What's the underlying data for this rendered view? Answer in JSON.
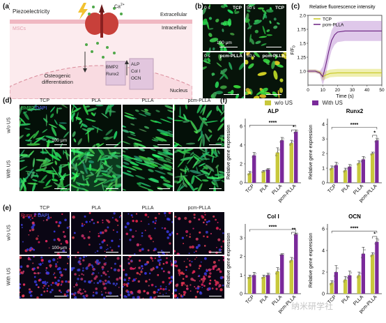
{
  "panel_labels": {
    "a": "(a)",
    "b": "(b)",
    "c": "(c)",
    "d": "(d)",
    "e": "(e)",
    "f": "(f)"
  },
  "panel_a": {
    "piezo": "Piezoelectricity",
    "ca": "Ca",
    "ca_sup": "2+",
    "extracellular": "Extracellular",
    "intracellular": "Intracellular",
    "mscs": "MSCs",
    "osteogenic": "Osteogenic",
    "differentiation": "differentiation",
    "bmp2": "BMP2",
    "runx2": "Runx2",
    "alp": "ALP",
    "col1": "Col I",
    "ocn": "OCN",
    "nucleus": "Nucleus"
  },
  "panel_b": {
    "tl_time": "0 s",
    "tl_label": "TCP",
    "tr_time": "50 s",
    "tr_label": "TCP",
    "bl_time": "0 s",
    "bl_label": "pcm-PLLA",
    "br_time": "50 s",
    "br_label": "pcm-PLLA",
    "scale": "100 μm"
  },
  "panel_c": {
    "title": "Relative fluorescence intensity",
    "ylabel": "F/F",
    "ylabel_sub": "0",
    "xlabel": "Time (s)",
    "legend": [
      "TCP",
      "pcm-PLLA"
    ]
  },
  "panel_d": {
    "stain_a": "BMP2",
    "stain_b": "DAPI",
    "cols": [
      "TCP",
      "PLA",
      "PLLA",
      "pcm-PLLA"
    ],
    "rows": [
      "w/o US",
      "With US"
    ],
    "scale": "100 μm"
  },
  "panel_e": {
    "stain_a": "Runx 2",
    "stain_b": "DAPI",
    "cols": [
      "TCP",
      "PLA",
      "PLLA",
      "pcm-PLLA"
    ],
    "rows": [
      "w/o US",
      "With US"
    ],
    "scale": "100 μm"
  },
  "panel_f": {
    "legend": [
      "w/o US",
      "With US"
    ],
    "ylabel": "Relative gene expression"
  },
  "watermark": "纳米研学社",
  "colors": {
    "wo_us": "#c8c83c",
    "with_us": "#7a2a9a",
    "tcp_line": "#c8c820",
    "pcm_line": "#6a2080",
    "fluor_green": "#2ec850",
    "fluor_red": "#e02850",
    "fluor_blue": "#3040e0"
  },
  "chart_data": [
    {
      "type": "line",
      "title": "Relative fluorescence intensity",
      "xlabel": "Time (s)",
      "ylabel": "F/F0",
      "xlim": [
        0,
        50
      ],
      "ylim": [
        0.75,
        2.0
      ],
      "xticks": [
        0,
        10,
        20,
        30,
        40,
        50
      ],
      "yticks": [
        1.0,
        1.25,
        1.5,
        1.75,
        2.0
      ],
      "series": [
        {
          "name": "TCP",
          "x": [
            0,
            5,
            8,
            10,
            12,
            15,
            20,
            25,
            30,
            35,
            40,
            45,
            50
          ],
          "y": [
            1.0,
            1.0,
            0.98,
            0.9,
            0.93,
            0.96,
            0.97,
            0.97,
            0.97,
            0.97,
            0.97,
            0.97,
            0.97
          ],
          "band": 0.07
        },
        {
          "name": "pcm-PLLA",
          "x": [
            0,
            5,
            8,
            10,
            12,
            14,
            16,
            18,
            20,
            25,
            30,
            35,
            40,
            45,
            50
          ],
          "y": [
            1.0,
            1.0,
            0.97,
            0.9,
            1.1,
            1.35,
            1.55,
            1.65,
            1.7,
            1.72,
            1.72,
            1.72,
            1.72,
            1.72,
            1.72
          ],
          "band": 0.18
        }
      ]
    },
    {
      "type": "bar",
      "title": "ALP",
      "categories": [
        "TCP",
        "PLA",
        "PLLA",
        "pcm-PLLA"
      ],
      "yticks": [
        0,
        2,
        4,
        6
      ],
      "ylim": [
        0,
        6.5
      ],
      "series": [
        {
          "name": "w/o US",
          "values": [
            1.0,
            1.2,
            3.2,
            4.2
          ]
        },
        {
          "name": "With US",
          "values": [
            2.9,
            1.4,
            4.5,
            5.4
          ]
        }
      ],
      "errors": [
        [
          0.2,
          0.1,
          0.5,
          0.3
        ],
        [
          0.3,
          0.1,
          0.3,
          0.2
        ]
      ],
      "sig": [
        {
          "label": "****",
          "from": 0,
          "to": 7,
          "level": 6.1
        },
        {
          "label": "*",
          "from": 6,
          "to": 7,
          "level": 5.6
        }
      ]
    },
    {
      "type": "bar",
      "title": "Runx2",
      "categories": [
        "TCP",
        "PLA",
        "PLLA",
        "pcm-PLLA"
      ],
      "yticks": [
        0,
        1,
        2,
        3,
        4
      ],
      "ylim": [
        0,
        4.2
      ],
      "series": [
        {
          "name": "w/o US",
          "values": [
            1.0,
            0.85,
            1.35,
            2.0
          ]
        },
        {
          "name": "With US",
          "values": [
            1.2,
            1.1,
            1.6,
            2.9
          ]
        }
      ],
      "errors": [
        [
          0.15,
          0.15,
          0.15,
          0.1
        ],
        [
          0.2,
          0.15,
          0.2,
          0.15
        ]
      ],
      "sig": [
        {
          "label": "****",
          "from": 0,
          "to": 7,
          "level": 3.8
        },
        {
          "label": "*",
          "from": 6,
          "to": 7,
          "level": 3.25
        }
      ]
    },
    {
      "type": "bar",
      "title": "Col I",
      "categories": [
        "TCP",
        "PLA",
        "PLLA",
        "pcm-PLLA"
      ],
      "yticks": [
        0,
        1,
        2,
        3
      ],
      "ylim": [
        0,
        3.6
      ],
      "series": [
        {
          "name": "w/o US",
          "values": [
            0.9,
            0.9,
            1.2,
            1.8
          ]
        },
        {
          "name": "With US",
          "values": [
            1.0,
            1.0,
            2.1,
            3.2
          ]
        }
      ],
      "errors": [
        [
          0.1,
          0.1,
          0.2,
          0.15
        ],
        [
          0.15,
          0.1,
          0.05,
          0.05
        ]
      ],
      "sig": [
        {
          "label": "****",
          "from": 0,
          "to": 7,
          "level": 3.45
        },
        {
          "label": "**",
          "from": 6,
          "to": 7,
          "level": 3.3
        }
      ]
    },
    {
      "type": "bar",
      "title": "OCN",
      "categories": [
        "TCP",
        "PLA",
        "PLLA",
        "pcm-PLLA"
      ],
      "yticks": [
        0,
        2,
        4,
        6
      ],
      "ylim": [
        0,
        6.2
      ],
      "series": [
        {
          "name": "w/o US",
          "values": [
            1.0,
            1.3,
            1.7,
            3.6
          ]
        },
        {
          "name": "With US",
          "values": [
            2.0,
            1.7,
            3.7,
            4.8
          ]
        }
      ],
      "errors": [
        [
          0.2,
          0.3,
          0.3,
          0.2
        ],
        [
          0.6,
          0.4,
          0.6,
          0.3
        ]
      ],
      "sig": [
        {
          "label": "****",
          "from": 0,
          "to": 7,
          "level": 5.8
        },
        {
          "label": "*",
          "from": 6,
          "to": 7,
          "level": 5.3
        }
      ]
    }
  ]
}
